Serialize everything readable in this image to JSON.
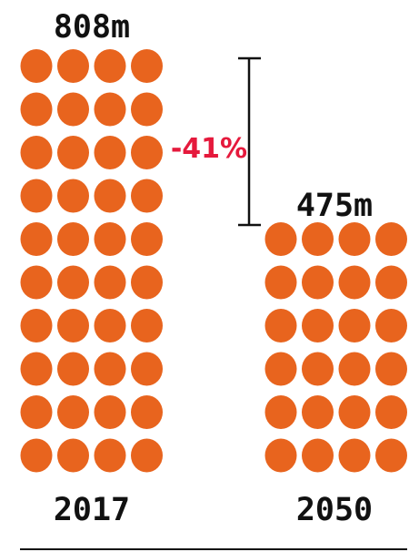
{
  "chart_data": {
    "type": "bar",
    "categories": [
      "2017",
      "2050"
    ],
    "values": [
      808,
      475
    ],
    "value_labels": [
      "808m",
      "475m"
    ],
    "change_label": "-41%",
    "colors": {
      "dots": "#E8641E",
      "change_text": "#E5193C",
      "text": "#111111",
      "rules": "#111111"
    }
  }
}
